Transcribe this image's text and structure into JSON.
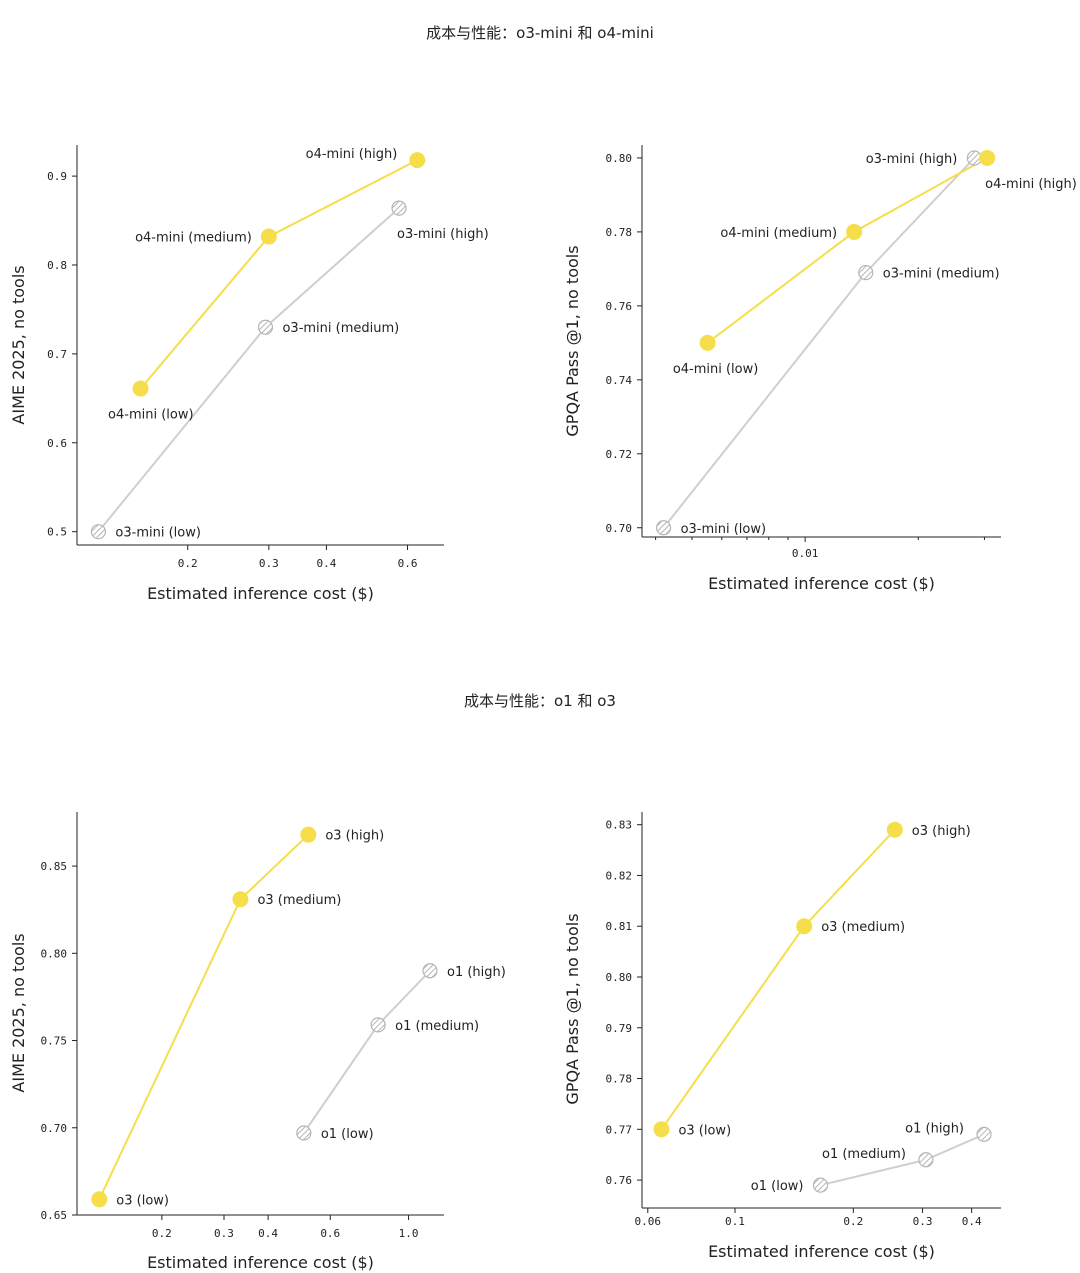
{
  "sections": [
    {
      "title": "成本与性能：o3-mini 和 o4-mini"
    },
    {
      "title": "成本与性能：o1 和 o3"
    }
  ],
  "colors": {
    "accent": "#f5de4a",
    "gray": "#cfcfcf",
    "axis": "#222222",
    "hatch": "#b5b5b5"
  },
  "chart_data": [
    {
      "type": "line",
      "scale_x": "log",
      "title": "",
      "xlabel": "Estimated inference cost ($)",
      "ylabel": "AIME 2025, no tools",
      "xlim": [
        0.115,
        0.72
      ],
      "ylim": [
        0.485,
        0.935
      ],
      "xticks": [
        0.2,
        0.3,
        0.4,
        0.6
      ],
      "xtick_labels": [
        "0.2",
        "0.3",
        "0.4",
        "0.6"
      ],
      "yticks": [
        0.5,
        0.6,
        0.7,
        0.8,
        0.9
      ],
      "ytick_labels": [
        "0.5",
        "0.6",
        "0.7",
        "0.8",
        "0.9"
      ],
      "series": [
        {
          "name": "o3-mini",
          "style": "hatched",
          "points": [
            {
              "x": 0.128,
              "y": 0.5,
              "label": "o3-mini (low)",
              "pos": "right"
            },
            {
              "x": 0.295,
              "y": 0.73,
              "label": "o3-mini (medium)",
              "pos": "right"
            },
            {
              "x": 0.575,
              "y": 0.864,
              "label": "o3-mini (high)",
              "pos": "below-right"
            }
          ]
        },
        {
          "name": "o4-mini",
          "style": "filled",
          "points": [
            {
              "x": 0.158,
              "y": 0.661,
              "label": "o4-mini (low)",
              "pos": "below-left"
            },
            {
              "x": 0.3,
              "y": 0.832,
              "label": "o4-mini (medium)",
              "pos": "left"
            },
            {
              "x": 0.63,
              "y": 0.918,
              "label": "o4-mini (high)",
              "pos": "above-left"
            }
          ]
        }
      ]
    },
    {
      "type": "line",
      "scale_x": "log",
      "title": "",
      "xlabel": "Estimated inference cost ($)",
      "ylabel": "GPQA Pass @1, no tools",
      "xlim": [
        0.00368,
        0.0332
      ],
      "ylim": [
        0.6975,
        0.8035
      ],
      "xticks": [
        0.01
      ],
      "xtick_labels": [
        "0.01"
      ],
      "xminor": [
        0.004,
        0.005,
        0.006,
        0.007,
        0.008,
        0.009,
        0.02,
        0.03
      ],
      "yticks": [
        0.7,
        0.72,
        0.74,
        0.76,
        0.78,
        0.8
      ],
      "ytick_labels": [
        "0.70",
        "0.72",
        "0.74",
        "0.76",
        "0.78",
        "0.80"
      ],
      "series": [
        {
          "name": "o3-mini",
          "style": "hatched",
          "points": [
            {
              "x": 0.0042,
              "y": 0.7,
              "label": "o3-mini (low)",
              "pos": "right"
            },
            {
              "x": 0.0145,
              "y": 0.769,
              "label": "o3-mini (medium)",
              "pos": "right"
            },
            {
              "x": 0.0282,
              "y": 0.8,
              "label": "o3-mini (high)",
              "pos": "left"
            }
          ]
        },
        {
          "name": "o4-mini",
          "style": "filled",
          "points": [
            {
              "x": 0.0055,
              "y": 0.75,
              "label": "o4-mini (low)",
              "pos": "below-center"
            },
            {
              "x": 0.0135,
              "y": 0.78,
              "label": "o4-mini (medium)",
              "pos": "left"
            },
            {
              "x": 0.0305,
              "y": 0.8,
              "label": "o4-mini (high)",
              "pos": "below-right"
            }
          ]
        }
      ]
    },
    {
      "type": "line",
      "scale_x": "log",
      "title": "",
      "xlabel": "Estimated inference cost ($)",
      "ylabel": "AIME 2025, no tools",
      "xlim": [
        0.115,
        1.26
      ],
      "ylim": [
        0.65,
        0.881
      ],
      "xticks": [
        0.2,
        0.3,
        0.4,
        0.6,
        1.0
      ],
      "xtick_labels": [
        "0.2",
        "0.3",
        "0.4",
        "0.6",
        "1.0"
      ],
      "yticks": [
        0.65,
        0.7,
        0.75,
        0.8,
        0.85
      ],
      "ytick_labels": [
        "0.65",
        "0.70",
        "0.75",
        "0.80",
        "0.85"
      ],
      "series": [
        {
          "name": "o1",
          "style": "hatched",
          "points": [
            {
              "x": 0.505,
              "y": 0.697,
              "label": "o1 (low)",
              "pos": "right"
            },
            {
              "x": 0.82,
              "y": 0.759,
              "label": "o1 (medium)",
              "pos": "right"
            },
            {
              "x": 1.15,
              "y": 0.79,
              "label": "o1 (high)",
              "pos": "right"
            }
          ]
        },
        {
          "name": "o3",
          "style": "filled",
          "points": [
            {
              "x": 0.133,
              "y": 0.659,
              "label": "o3 (low)",
              "pos": "right"
            },
            {
              "x": 0.334,
              "y": 0.831,
              "label": "o3 (medium)",
              "pos": "right"
            },
            {
              "x": 0.52,
              "y": 0.868,
              "label": "o3 (high)",
              "pos": "right"
            }
          ]
        }
      ]
    },
    {
      "type": "line",
      "scale_x": "log",
      "title": "",
      "xlabel": "Estimated inference cost ($)",
      "ylabel": "GPQA Pass @1, no tools",
      "xlim": [
        0.058,
        0.475
      ],
      "ylim": [
        0.7545,
        0.8325
      ],
      "xticks": [
        0.06,
        0.1,
        0.2,
        0.3,
        0.4
      ],
      "xtick_labels": [
        "0.06",
        "0.1",
        "0.2",
        "0.3",
        "0.4"
      ],
      "yticks": [
        0.76,
        0.77,
        0.78,
        0.79,
        0.8,
        0.81,
        0.82,
        0.83
      ],
      "ytick_labels": [
        "0.76",
        "0.77",
        "0.78",
        "0.79",
        "0.80",
        "0.81",
        "0.82",
        "0.83"
      ],
      "series": [
        {
          "name": "o1",
          "style": "hatched",
          "points": [
            {
              "x": 0.165,
              "y": 0.759,
              "label": "o1 (low)",
              "pos": "left"
            },
            {
              "x": 0.306,
              "y": 0.764,
              "label": "o1 (medium)",
              "pos": "above-left"
            },
            {
              "x": 0.43,
              "y": 0.769,
              "label": "o1 (high)",
              "pos": "above-left"
            }
          ]
        },
        {
          "name": "o3",
          "style": "filled",
          "points": [
            {
              "x": 0.065,
              "y": 0.77,
              "label": "o3 (low)",
              "pos": "right"
            },
            {
              "x": 0.15,
              "y": 0.81,
              "label": "o3 (medium)",
              "pos": "right"
            },
            {
              "x": 0.255,
              "y": 0.829,
              "label": "o3 (high)",
              "pos": "right"
            }
          ]
        }
      ]
    }
  ]
}
